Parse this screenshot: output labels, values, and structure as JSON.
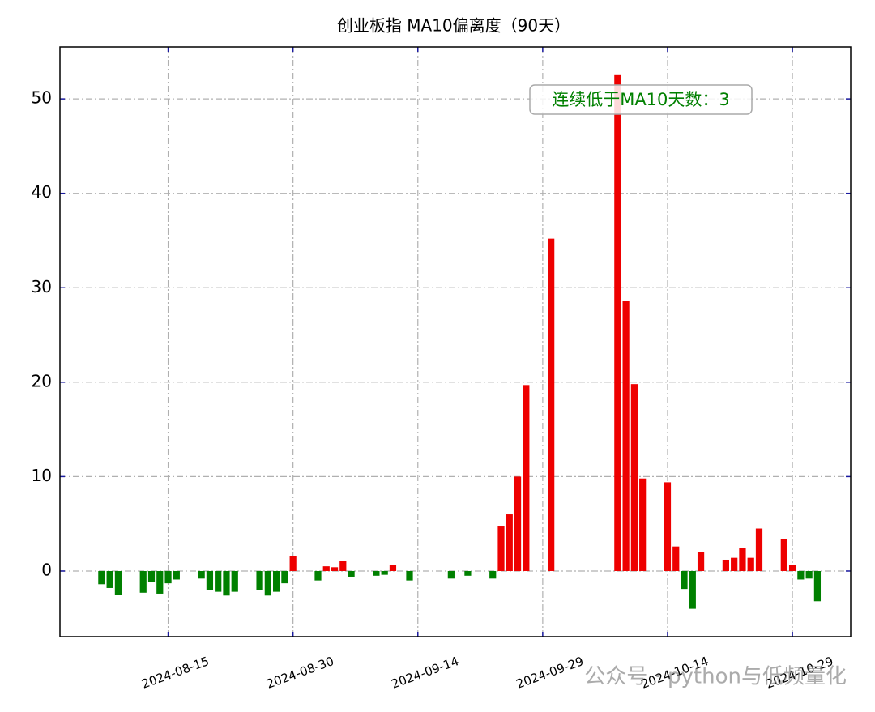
{
  "chart_data": {
    "type": "bar",
    "title": "创业板指 MA10偏离度（90天）",
    "annotation": "连续低于MA10天数：3",
    "watermark": "公众号 · python与低频量化",
    "x": [
      "2024-08-07",
      "2024-08-08",
      "2024-08-09",
      "2024-08-12",
      "2024-08-13",
      "2024-08-14",
      "2024-08-15",
      "2024-08-16",
      "2024-08-19",
      "2024-08-20",
      "2024-08-21",
      "2024-08-22",
      "2024-08-23",
      "2024-08-26",
      "2024-08-27",
      "2024-08-28",
      "2024-08-29",
      "2024-08-30",
      "2024-09-02",
      "2024-09-03",
      "2024-09-04",
      "2024-09-05",
      "2024-09-06",
      "2024-09-09",
      "2024-09-10",
      "2024-09-11",
      "2024-09-12",
      "2024-09-13",
      "2024-09-18",
      "2024-09-19",
      "2024-09-20",
      "2024-09-23",
      "2024-09-24",
      "2024-09-25",
      "2024-09-26",
      "2024-09-27",
      "2024-09-30",
      "2024-10-08",
      "2024-10-09",
      "2024-10-10",
      "2024-10-11",
      "2024-10-14",
      "2024-10-15",
      "2024-10-16",
      "2024-10-17",
      "2024-10-18",
      "2024-10-21",
      "2024-10-22",
      "2024-10-23",
      "2024-10-24",
      "2024-10-25",
      "2024-10-28",
      "2024-10-29",
      "2024-10-30",
      "2024-10-31",
      "2024-11-01"
    ],
    "values": [
      -1.4,
      -1.8,
      -2.5,
      -2.3,
      -1.2,
      -2.4,
      -1.3,
      -0.9,
      -0.8,
      -2.0,
      -2.2,
      -2.6,
      -2.2,
      -2.0,
      -2.6,
      -2.2,
      -1.3,
      1.6,
      -1.0,
      0.5,
      0.4,
      1.1,
      -0.6,
      -0.5,
      -0.4,
      0.6,
      0,
      -1.0,
      -0.8,
      0,
      -0.5,
      -0.8,
      4.8,
      6.0,
      10.0,
      19.7,
      35.2,
      52.6,
      28.6,
      19.8,
      9.8,
      9.4,
      2.6,
      -1.9,
      -4.0,
      2.0,
      1.2,
      1.4,
      2.4,
      1.4,
      4.5,
      3.4,
      0.6,
      -0.9,
      -0.8,
      -3.2
    ],
    "color_positive": "#ee0000",
    "color_negative": "#008000",
    "xlim": [
      "2024-08-02",
      "2024-11-05"
    ],
    "xticks": [
      "2024-08-15",
      "2024-08-30",
      "2024-09-14",
      "2024-09-29",
      "2024-10-14",
      "2024-10-29"
    ],
    "ylim": [
      -6.95,
      55.5
    ],
    "yticks": [
      0,
      10,
      20,
      30,
      40,
      50
    ],
    "grid": true
  }
}
